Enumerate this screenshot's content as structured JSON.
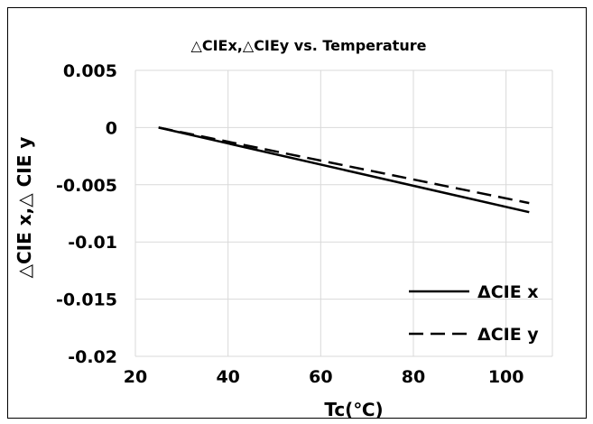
{
  "chart_data": {
    "type": "line",
    "title": "△CIEx,△CIEy vs. Temperature",
    "xlabel": "Tc(℃)",
    "ylabel": "△CIE x,△ CIE y",
    "xlim": [
      20,
      110
    ],
    "ylim": [
      -0.02,
      0.005
    ],
    "x_ticks": [
      20,
      40,
      60,
      80,
      100
    ],
    "y_ticks": [
      0.005,
      0,
      -0.005,
      -0.01,
      -0.015,
      -0.02
    ],
    "x_tick_labels": [
      "20",
      "40",
      "60",
      "80",
      "100"
    ],
    "y_tick_labels": [
      "0.005",
      "0",
      "-0.005",
      "-0.01",
      "-0.015",
      "-0.02"
    ],
    "grid": true,
    "legend_position": "bottom-right",
    "series": [
      {
        "name": "ΔCIE x",
        "style": "solid",
        "x": [
          25,
          105
        ],
        "y": [
          0,
          -0.0074
        ]
      },
      {
        "name": "ΔCIE y",
        "style": "dashed",
        "x": [
          25,
          105
        ],
        "y": [
          0,
          -0.0066
        ]
      }
    ],
    "line_color": "#000000",
    "grid_color": "#d9d9d9"
  }
}
